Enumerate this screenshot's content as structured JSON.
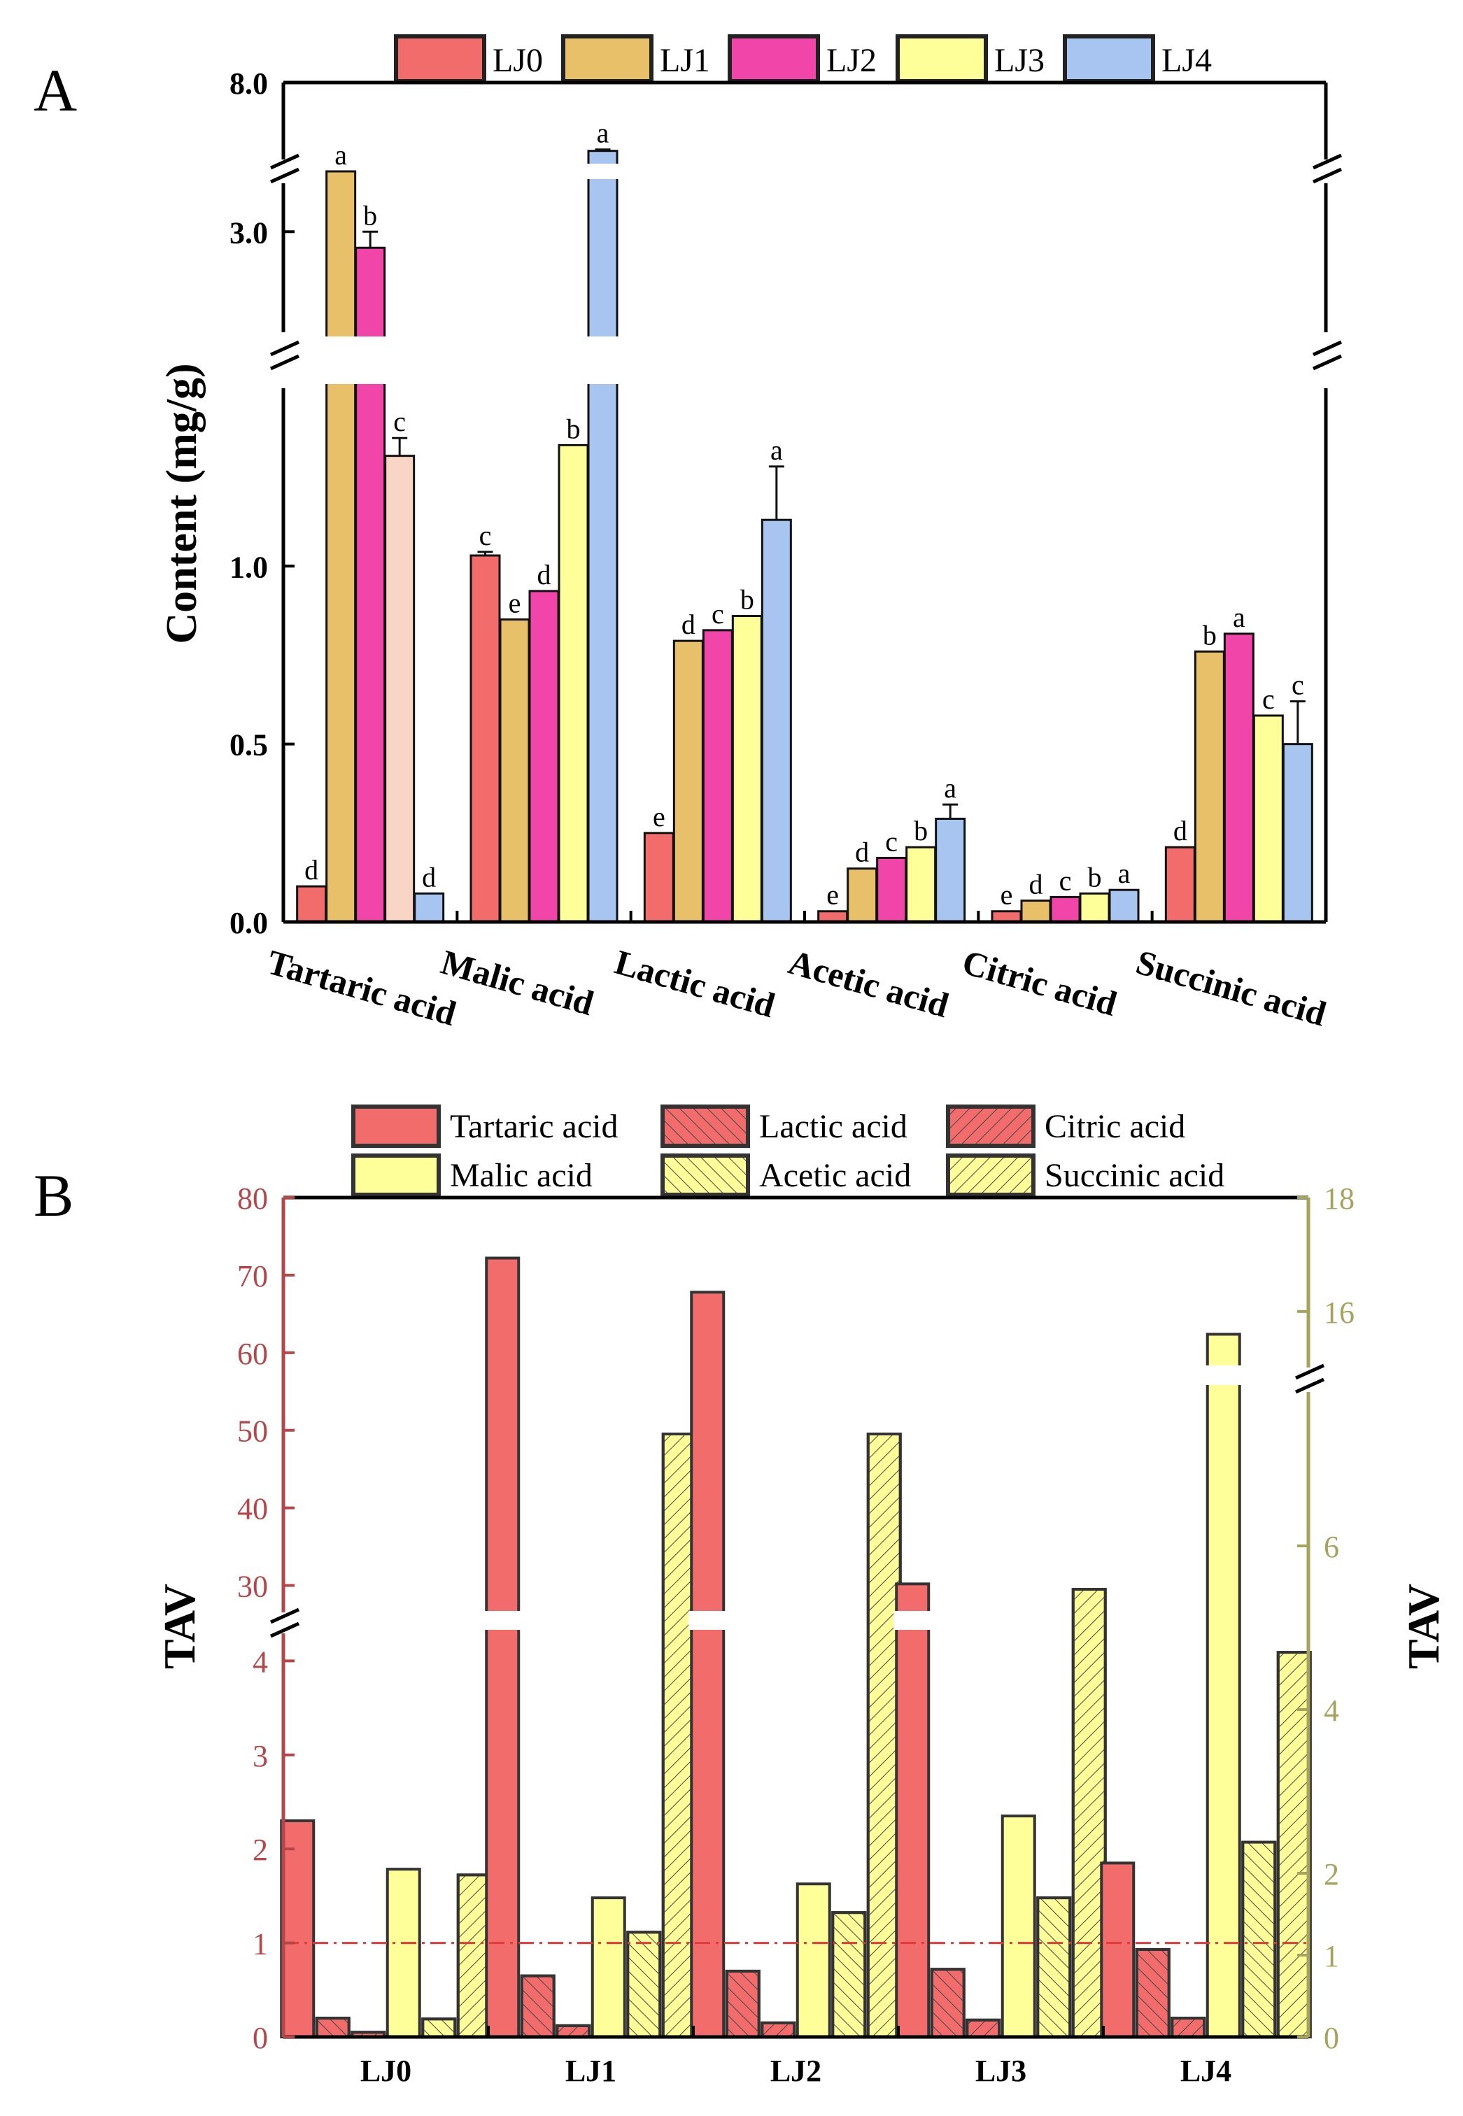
{
  "figure": {
    "panel_a_label": "A",
    "panel_b_label": "B"
  },
  "chart_data": [
    {
      "type": "bar",
      "panel": "A",
      "ylabel": "Content (mg/g)",
      "y_axis": {
        "segments": [
          [
            0,
            1.5
          ],
          [
            2.5,
            3.3
          ],
          [
            6.7,
            8.0
          ]
        ],
        "breaks": [
          1.5,
          3.3
        ]
      },
      "yticks": [
        "0.0",
        "0.5",
        "1.0",
        "3.0",
        "8.0"
      ],
      "ytick_values": [
        0,
        0.5,
        1.0,
        3.0,
        8.0
      ],
      "categories": [
        "Tartaric acid",
        "Malic acid",
        "Lactic acid",
        "Acetic acid",
        "Citric acid",
        "Succinic acid"
      ],
      "legend_placement": "top",
      "series": [
        {
          "name": "LJ0",
          "color": "#f26c6c",
          "values": [
            0.1,
            1.03,
            0.25,
            0.03,
            0.03,
            0.21
          ],
          "errors": [
            0,
            0.01,
            0,
            0,
            0,
            0
          ],
          "letters": [
            "d",
            "c",
            "e",
            "e",
            "e",
            "d"
          ]
        },
        {
          "name": "LJ1",
          "color": "#e8c06a",
          "values": [
            3.41,
            0.85,
            0.79,
            0.15,
            0.06,
            0.76
          ],
          "errors": [
            0.05,
            0,
            0,
            0,
            0,
            0
          ],
          "letters": [
            "a",
            "e",
            "d",
            "d",
            "d",
            "b"
          ]
        },
        {
          "name": "LJ2",
          "color": "#f245a9",
          "values": [
            2.92,
            0.93,
            0.82,
            0.18,
            0.07,
            0.81
          ],
          "errors": [
            0.08,
            0,
            0,
            0,
            0,
            0
          ],
          "letters": [
            "b",
            "d",
            "c",
            "c",
            "c",
            "a"
          ],
          "fills": [
            "#f245a9",
            null,
            null,
            null,
            null,
            null
          ]
        },
        {
          "name": "LJ3",
          "color": "#ffff99",
          "values": [
            1.31,
            1.34,
            0.86,
            0.21,
            0.08,
            0.58
          ],
          "errors": [
            0.05,
            0,
            0,
            0,
            0,
            0
          ],
          "letters": [
            "c",
            "b",
            "b",
            "b",
            "b",
            "c"
          ],
          "fills": [
            "#f9d5c6",
            null,
            null,
            null,
            null,
            null
          ]
        },
        {
          "name": "LJ4",
          "color": "#a8c4f0",
          "values": [
            0.08,
            7.0,
            1.13,
            0.29,
            0.09,
            0.5
          ],
          "errors": [
            0,
            0.02,
            0.15,
            0.04,
            0,
            0.12
          ],
          "letters": [
            "d",
            "a",
            "a",
            "a",
            "a",
            "c"
          ]
        }
      ]
    },
    {
      "type": "bar",
      "panel": "B",
      "ylabel": "TAV",
      "y2label": "TAV",
      "categories": [
        "LJ0",
        "LJ1",
        "LJ2",
        "LJ3",
        "LJ4"
      ],
      "left_axis": {
        "color": "#b5474a",
        "segments": [
          [
            0,
            5
          ],
          [
            25,
            80
          ]
        ],
        "break": 5,
        "ticks": [
          0,
          1,
          2,
          3,
          4,
          30,
          40,
          50,
          60,
          70,
          80
        ]
      },
      "right_axis": {
        "color": "#a5a35e",
        "segments": [
          [
            0,
            6.8
          ],
          [
            14.5,
            18
          ]
        ],
        "break": 6.8,
        "ticks": [
          0,
          1,
          2,
          4,
          6,
          16,
          18
        ]
      },
      "threshold": {
        "value": 1,
        "color": "#e23a3a",
        "style": "dash-dot"
      },
      "legend_placement": "top",
      "series": [
        {
          "name": "Tartaric acid",
          "axis": "left",
          "color": "#f26c6c",
          "hatch": "none",
          "values": [
            2.3,
            72.2,
            67.8,
            30.2,
            1.85
          ]
        },
        {
          "name": "Lactic acid",
          "axis": "left",
          "color": "#f26c6c",
          "hatch": "diag",
          "values": [
            0.2,
            0.65,
            0.7,
            0.72,
            0.93
          ]
        },
        {
          "name": "Citric acid",
          "axis": "left",
          "color": "#f26c6c",
          "hatch": "back",
          "values": [
            0.05,
            0.12,
            0.15,
            0.18,
            0.2
          ]
        },
        {
          "name": "Malic acid",
          "axis": "right",
          "color": "#ffff99",
          "hatch": "none",
          "values": [
            2.05,
            1.7,
            1.87,
            2.7,
            15.6
          ]
        },
        {
          "name": "Acetic acid",
          "axis": "right",
          "color": "#ffff99",
          "hatch": "diag",
          "values": [
            0.22,
            1.28,
            1.52,
            1.7,
            2.38
          ]
        },
        {
          "name": "Succinic acid",
          "axis": "right",
          "color": "#ffff99",
          "hatch": "back",
          "values": [
            1.98,
            7.05,
            7.45,
            5.47,
            4.7
          ]
        }
      ]
    }
  ]
}
